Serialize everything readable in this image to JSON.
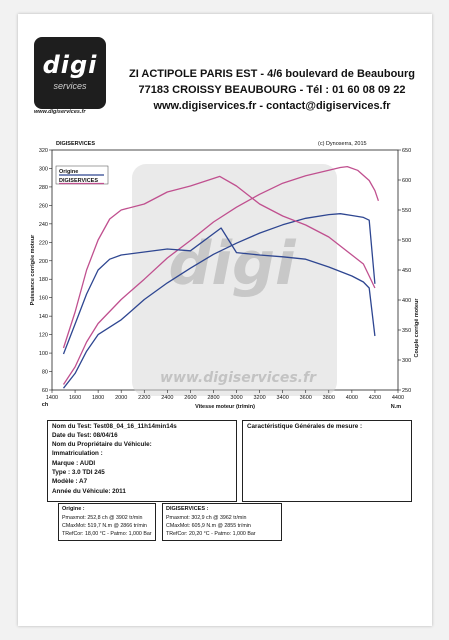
{
  "header": {
    "logo_text": "digi",
    "logo_sub": "services",
    "logo_url": "www.digiservices.fr",
    "line1": "ZI ACTIPOLE PARIS EST - 4/6 boulevard de Beaubourg",
    "line2": "77183 CROISSY BEAUBOURG - Tél : 01 60 08 09 22",
    "line3": "www.digiservices.fr - contact@digiservices.fr"
  },
  "plot_header": {
    "left": "DIGISERVICES",
    "right": "(c) Dynoserra, 2015"
  },
  "watermark": {
    "brand": "digi",
    "url": "www.digiservices.fr"
  },
  "colors": {
    "origine": "#2e4691",
    "digiservices": "#c0508f"
  },
  "chart_data": {
    "type": "line",
    "xlabel": "Vitesse moteur (tr/min)",
    "ylabel_left": "Puissance corrigée moteur",
    "ylabel_right": "Couple corrigé moteur",
    "x_unit": "tr/min",
    "left_unit": "ch",
    "right_unit": "N.m",
    "xlim": [
      1400,
      4400
    ],
    "ylim_left": [
      60,
      320
    ],
    "ylim_right": [
      250,
      650
    ],
    "x_ticks": [
      1400,
      1600,
      1800,
      2000,
      2200,
      2400,
      2600,
      2800,
      3000,
      3200,
      3400,
      3600,
      3800,
      4000,
      4200,
      4400
    ],
    "y_ticks_left": [
      60,
      80,
      100,
      120,
      140,
      160,
      180,
      200,
      220,
      240,
      260,
      280,
      300,
      320
    ],
    "y_ticks_right": [
      250,
      300,
      350,
      400,
      450,
      500,
      550,
      600,
      650
    ],
    "grid": false,
    "legend": [
      "Origine",
      "DIGISERVICES"
    ],
    "series": [
      {
        "name": "Origine",
        "kind": "power",
        "axis": "left",
        "x": [
          1500,
          1600,
          1700,
          1800,
          2000,
          2200,
          2400,
          2600,
          2800,
          3000,
          3200,
          3400,
          3600,
          3800,
          3900,
          4000,
          4100,
          4150,
          4200
        ],
        "y": [
          62,
          78,
          102,
          120,
          136,
          158,
          176,
          192,
          207,
          219,
          230,
          239,
          246,
          250,
          251,
          249,
          247,
          244,
          175
        ]
      },
      {
        "name": "DIGISERVICES",
        "kind": "power",
        "axis": "left",
        "x": [
          1500,
          1600,
          1700,
          1800,
          2000,
          2200,
          2400,
          2600,
          2800,
          3000,
          3200,
          3400,
          3600,
          3800,
          3900,
          3960,
          4050,
          4150,
          4200,
          4230
        ],
        "y": [
          66,
          85,
          112,
          132,
          158,
          180,
          203,
          222,
          242,
          258,
          272,
          284,
          292,
          298,
          301,
          302,
          298,
          287,
          276,
          265
        ]
      },
      {
        "name": "Origine",
        "kind": "torque",
        "axis": "right",
        "x": [
          1500,
          1600,
          1700,
          1800,
          1900,
          2000,
          2200,
          2400,
          2600,
          2866,
          3000,
          3200,
          3400,
          3600,
          3800,
          4000,
          4100,
          4150,
          4200
        ],
        "y": [
          310,
          360,
          410,
          450,
          468,
          475,
          480,
          485,
          482,
          520,
          479,
          475,
          472,
          468,
          455,
          440,
          430,
          420,
          340
        ]
      },
      {
        "name": "DIGISERVICES",
        "kind": "torque",
        "axis": "right",
        "x": [
          1500,
          1600,
          1700,
          1800,
          1900,
          2000,
          2200,
          2400,
          2600,
          2855,
          3000,
          3200,
          3400,
          3600,
          3800,
          4000,
          4100,
          4150,
          4200
        ],
        "y": [
          320,
          380,
          450,
          500,
          535,
          550,
          560,
          580,
          590,
          606,
          590,
          560,
          540,
          525,
          505,
          475,
          460,
          440,
          420
        ]
      }
    ]
  },
  "test_info": {
    "nom_test": "Nom du Test: Test08_04_16_11h14min14s",
    "date": "Date du Test: 08/04/16",
    "proprietaire": "Nom du Propriétaire du Véhicule:",
    "immatriculation": "Immatriculation :",
    "marque": "Marque : AUDI",
    "type": "Type : 3.0 TDI 245",
    "modele": "Modèle : A7",
    "annee": "Année du Véhicule: 2011"
  },
  "mesure": {
    "title": "Caractéristique Générales de mesure :"
  },
  "origine_box": {
    "title": "Origine :",
    "pmax": "Pmaxmot: 252,8 ch @ 3902 tr/min",
    "cmax": "CMaxMot: 519,7 N.m @ 2866 tr/min",
    "tref": "TRefCor: 18,00 °C - Patmo: 1,000 Bar"
  },
  "digi_box": {
    "title": "DIGISERVICES :",
    "pmax": "Pmaxmot: 302,9 ch @ 3962 tr/min",
    "cmax": "CMaxMot: 605,9 N.m @ 2855 tr/min",
    "tref": "TRefCor: 20,20 °C - Patmo: 1,000 Bar"
  }
}
